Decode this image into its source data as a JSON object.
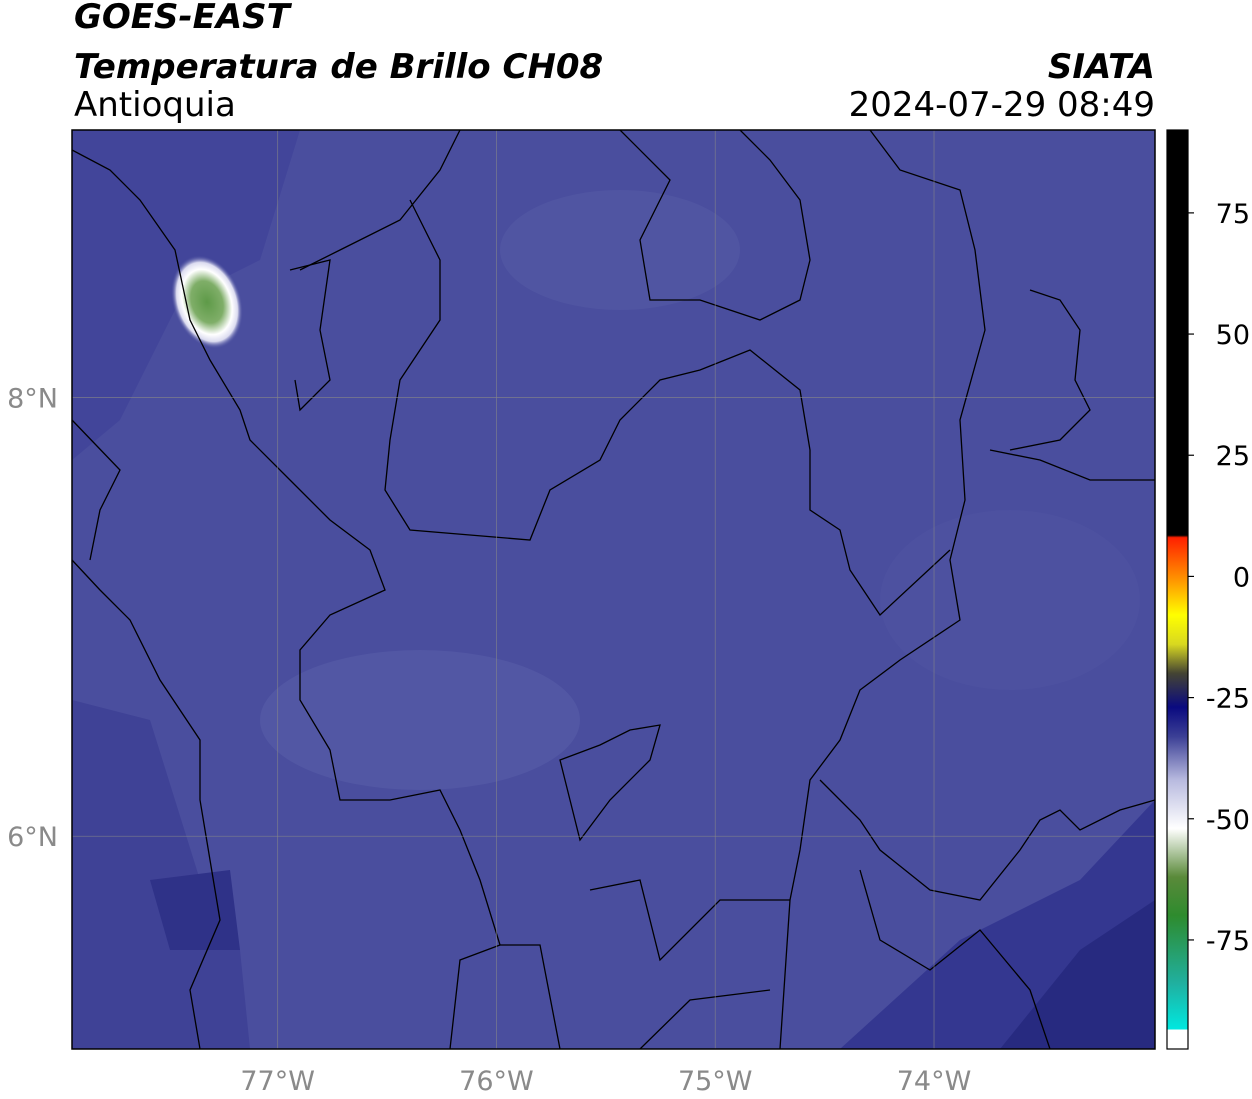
{
  "header": {
    "title": "GOES-EAST",
    "subtitle": "Temperatura de Brillo CH08",
    "region": "Antioquia",
    "source": "SIATA",
    "timestamp": "2024-07-29 08:49"
  },
  "map": {
    "xlim": [
      -77.94,
      -72.99
    ],
    "ylim": [
      5.03,
      9.22
    ],
    "xticks": [
      {
        "value": -77,
        "label": "77°W"
      },
      {
        "value": -76,
        "label": "76°W"
      },
      {
        "value": -75,
        "label": "75°W"
      },
      {
        "value": -74,
        "label": "74°W"
      }
    ],
    "yticks": [
      {
        "value": 6,
        "label": "6°N"
      },
      {
        "value": 8,
        "label": "8°N"
      }
    ],
    "grid": true
  },
  "colorbar": {
    "ylim": [
      -97.5,
      92.1
    ],
    "yticks": [
      -75,
      -50,
      -25,
      0,
      25,
      50,
      75
    ],
    "stops": [
      {
        "value": -97.5,
        "color": "#ffffff"
      },
      {
        "value": -93.5,
        "color": "#ffffff"
      },
      {
        "value": -93.5,
        "color": "#00e8e0"
      },
      {
        "value": -84,
        "color": "#20b0a0"
      },
      {
        "value": -70,
        "color": "#2e8b2e"
      },
      {
        "value": -62,
        "color": "#5a8a3a"
      },
      {
        "value": -52,
        "color": "#ffffff"
      },
      {
        "value": -42,
        "color": "#b8badf"
      },
      {
        "value": -33,
        "color": "#3b3f95"
      },
      {
        "value": -27,
        "color": "#0a0a80"
      },
      {
        "value": -20,
        "color": "#444433"
      },
      {
        "value": -14,
        "color": "#d8d820"
      },
      {
        "value": -8,
        "color": "#ffff00"
      },
      {
        "value": -1,
        "color": "#ff9900"
      },
      {
        "value": 8,
        "color": "#ff2000"
      },
      {
        "value": 8.5,
        "color": "#000000"
      },
      {
        "value": 92.1,
        "color": "#000000"
      }
    ]
  }
}
